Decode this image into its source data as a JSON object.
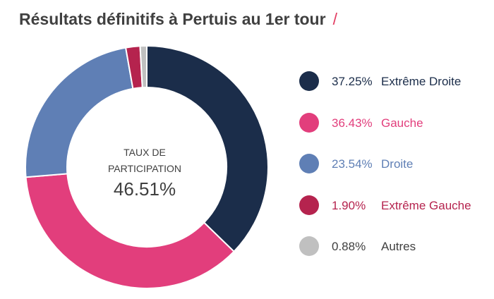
{
  "header": {
    "title": "Résultats définitifs à Pertuis au 1er tour",
    "slash": "/"
  },
  "center": {
    "caption_line1": "TAUX DE",
    "caption_line2": "PARTICIPATION",
    "value": "46.51%"
  },
  "chart_data": {
    "type": "pie",
    "title": "Résultats définitifs à Pertuis au 1er tour",
    "categories": [
      "Extrême Droite",
      "Gauche",
      "Droite",
      "Extrême Gauche",
      "Autres"
    ],
    "values": [
      37.25,
      36.43,
      23.54,
      1.9,
      0.88
    ],
    "colors": [
      "#1b2d4a",
      "#e23e7c",
      "#5f7fb5",
      "#b5234e",
      "#c0c0c0"
    ],
    "text_colors": [
      "#1b2d4a",
      "#e23e7c",
      "#5f7fb5",
      "#b5234e",
      "#404040"
    ],
    "pct_labels": [
      "37.25%",
      "36.43%",
      "23.54%",
      "1.90%",
      "0.88%"
    ],
    "legend_position": "right",
    "donut": true
  }
}
